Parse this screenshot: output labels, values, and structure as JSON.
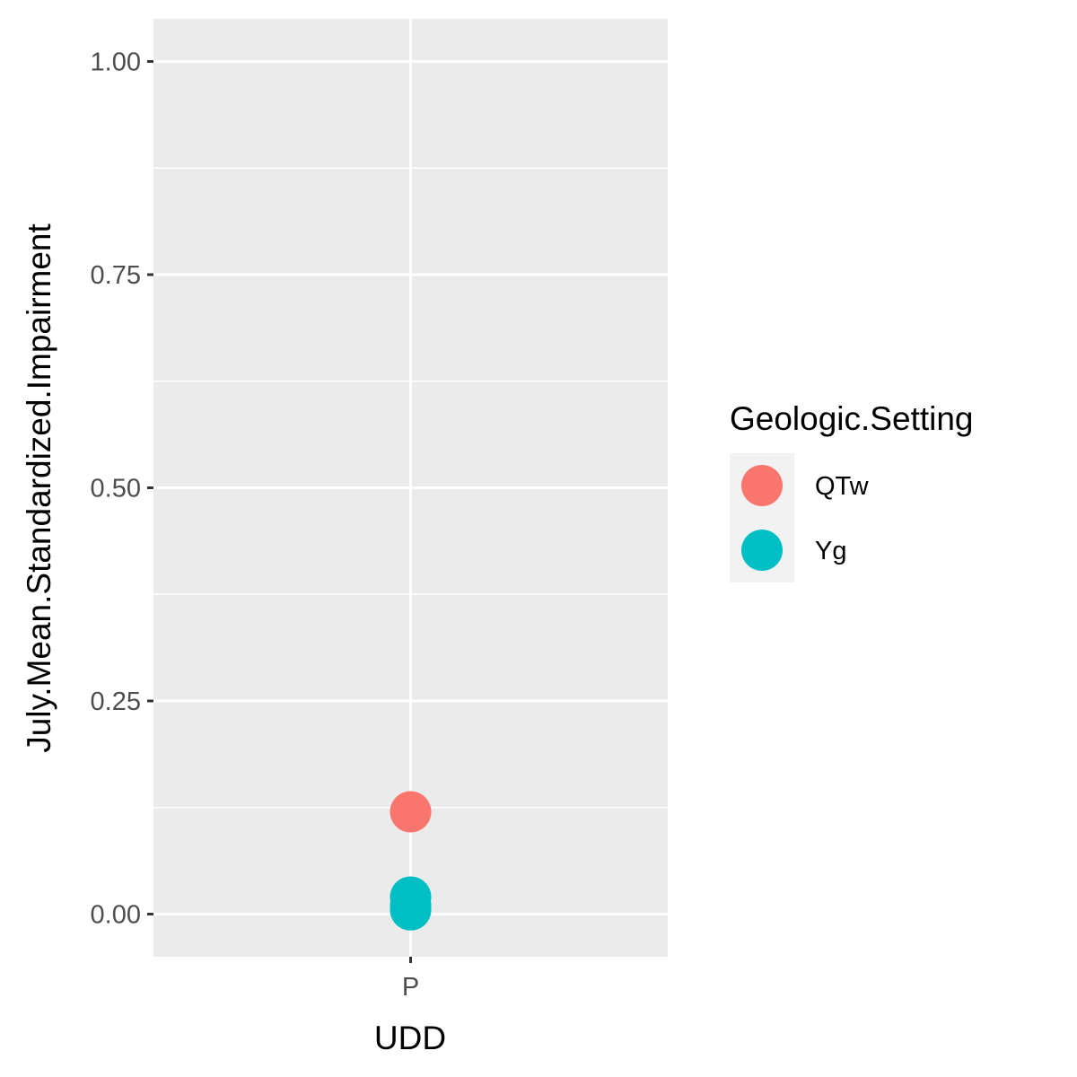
{
  "chart_data": {
    "type": "scatter",
    "xlabel": "UDD",
    "ylabel": "July.Mean.Standardized.Impairment",
    "categories": [
      "P"
    ],
    "ylim": [
      -0.05,
      1.05
    ],
    "y_ticks": [
      "0.00",
      "0.25",
      "0.50",
      "0.75",
      "1.00"
    ],
    "grid": true,
    "legend": {
      "title": "Geologic.Setting",
      "position": "right"
    },
    "series": [
      {
        "name": "QTw",
        "color": "#F8766D",
        "points": [
          {
            "x": "P",
            "y": 0.12
          }
        ]
      },
      {
        "name": "Yg",
        "color": "#00BFC4",
        "points": [
          {
            "x": "P",
            "y": 0.02
          },
          {
            "x": "P",
            "y": 0.01
          },
          {
            "x": "P",
            "y": 0.005
          }
        ]
      }
    ],
    "colors": {
      "panel_background": "#EBEBEB",
      "grid_line": "#FFFFFF",
      "legend_key_background": "#F2F2F2"
    }
  }
}
